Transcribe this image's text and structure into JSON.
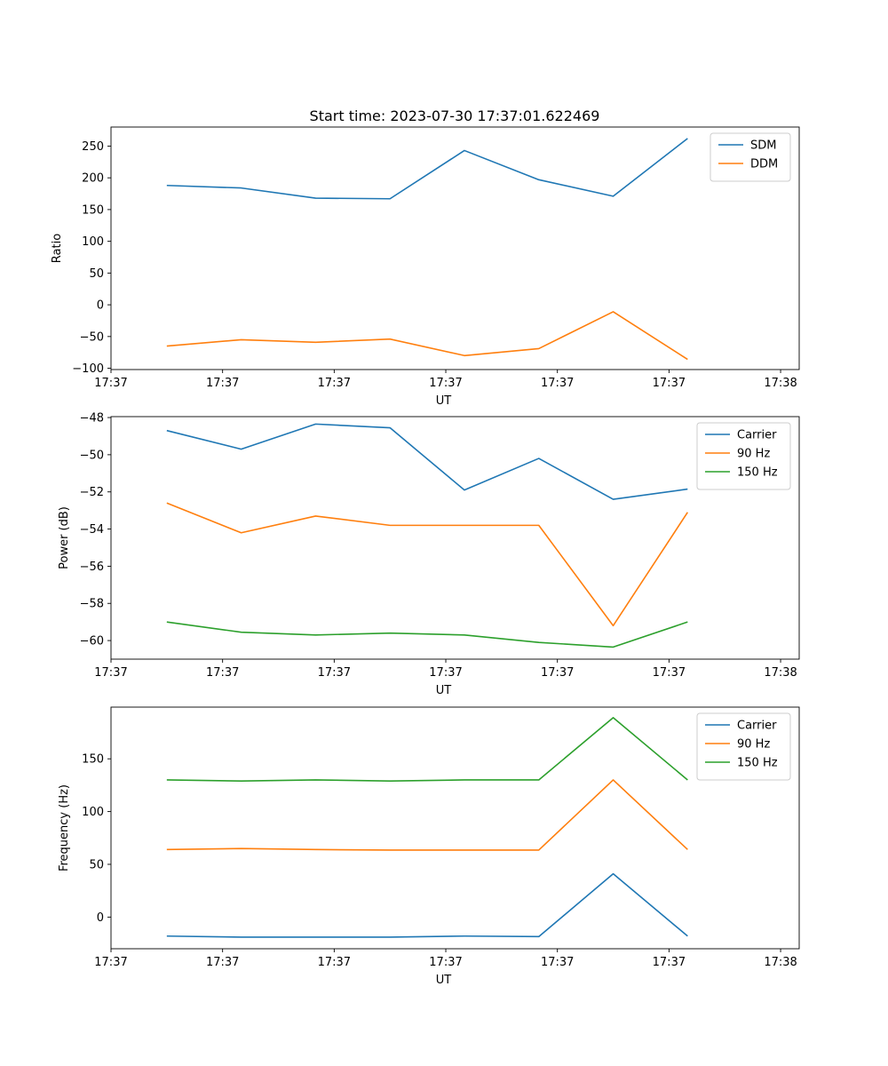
{
  "figure": {
    "title": "Start time: 2023-07-30 17:37:01.622469"
  },
  "colors": {
    "blue": "#1f77b4",
    "orange": "#ff7f0e",
    "green": "#2ca02c"
  },
  "chart_data": [
    {
      "type": "line",
      "ylabel": "Ratio",
      "xlabel": "UT",
      "x": [
        0,
        1,
        2,
        3,
        4,
        5,
        6,
        7
      ],
      "xlim": [
        -0.75,
        8.5
      ],
      "xticks": [
        -0.75,
        0.75,
        2.25,
        3.75,
        5.25,
        6.75,
        8.25
      ],
      "xticklabels": [
        "17:37",
        "17:37",
        "17:37",
        "17:37",
        "17:37",
        "17:37",
        "17:38"
      ],
      "ylim": [
        -102,
        280
      ],
      "yticks": [
        -100,
        -50,
        0,
        50,
        100,
        150,
        200,
        250
      ],
      "yticklabels": [
        "−100",
        "−50",
        "0",
        "50",
        "100",
        "150",
        "200",
        "250"
      ],
      "legend": "top-right",
      "series": [
        {
          "name": "SDM",
          "color": "blue",
          "values": [
            188,
            184,
            168,
            167,
            243,
            197,
            171,
            262
          ]
        },
        {
          "name": "DDM",
          "color": "orange",
          "values": [
            -65,
            -55,
            -59,
            -54,
            -80,
            -69,
            -11,
            -86
          ]
        }
      ]
    },
    {
      "type": "line",
      "ylabel": "Power (dB)",
      "xlabel": "UT",
      "x": [
        0,
        1,
        2,
        3,
        4,
        5,
        6,
        7
      ],
      "xlim": [
        -0.75,
        8.5
      ],
      "xticks": [
        -0.75,
        0.75,
        2.25,
        3.75,
        5.25,
        6.75,
        8.25
      ],
      "xticklabels": [
        "17:37",
        "17:37",
        "17:37",
        "17:37",
        "17:37",
        "17:37",
        "17:38"
      ],
      "ylim": [
        -61.0,
        -47.95
      ],
      "yticks": [
        -60,
        -58,
        -56,
        -54,
        -52,
        -50,
        -48
      ],
      "yticklabels": [
        "−60",
        "−58",
        "−56",
        "−54",
        "−52",
        "−50",
        "−48"
      ],
      "legend": "top-right",
      "series": [
        {
          "name": "Carrier",
          "color": "blue",
          "values": [
            -48.7,
            -49.7,
            -48.35,
            -48.55,
            -51.9,
            -50.2,
            -52.4,
            -51.85
          ]
        },
        {
          "name": "90 Hz",
          "color": "orange",
          "values": [
            -52.6,
            -54.2,
            -53.3,
            -53.8,
            -53.8,
            -53.8,
            -59.2,
            -53.1
          ]
        },
        {
          "name": "150 Hz",
          "color": "green",
          "values": [
            -59.0,
            -59.55,
            -59.7,
            -59.6,
            -59.7,
            -60.1,
            -60.35,
            -59.0
          ]
        }
      ]
    },
    {
      "type": "line",
      "ylabel": "Frequency (Hz)",
      "xlabel": "UT",
      "x": [
        0,
        1,
        2,
        3,
        4,
        5,
        6,
        7
      ],
      "xlim": [
        -0.75,
        8.5
      ],
      "xticks": [
        -0.75,
        0.75,
        2.25,
        3.75,
        5.25,
        6.75,
        8.25
      ],
      "xticklabels": [
        "17:37",
        "17:37",
        "17:37",
        "17:37",
        "17:37",
        "17:37",
        "17:38"
      ],
      "ylim": [
        -30,
        199
      ],
      "yticks": [
        0,
        50,
        100,
        150
      ],
      "yticklabels": [
        "0",
        "50",
        "100",
        "150"
      ],
      "legend": "top-right",
      "series": [
        {
          "name": "Carrier",
          "color": "blue",
          "values": [
            -18,
            -19,
            -19,
            -19,
            -18,
            -18.5,
            41,
            -18
          ]
        },
        {
          "name": "90 Hz",
          "color": "orange",
          "values": [
            64,
            65,
            64,
            63.5,
            63.5,
            63.5,
            130,
            64
          ]
        },
        {
          "name": "150 Hz",
          "color": "green",
          "values": [
            130,
            129,
            130,
            129,
            130,
            130,
            189,
            130
          ]
        }
      ]
    }
  ]
}
